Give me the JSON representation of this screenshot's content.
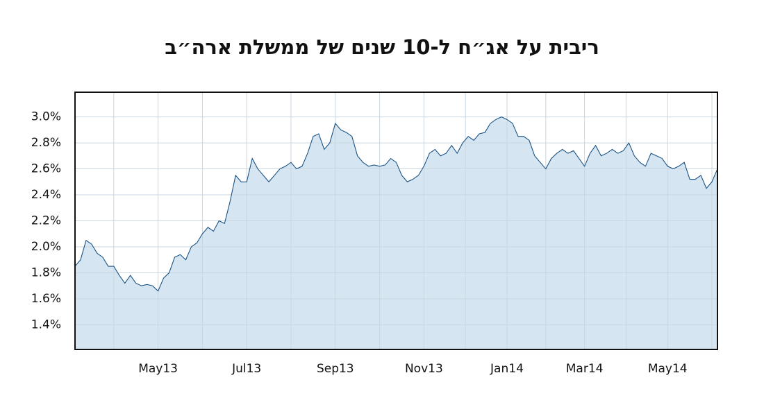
{
  "chart_data": {
    "type": "area",
    "title": "ריבית על אג״ח ל-10 שנים של ממשלת ארה״ב",
    "categories": [
      null,
      null,
      null,
      null,
      null,
      null,
      null,
      null,
      null,
      null,
      null,
      null,
      null,
      null,
      null,
      "May13",
      null,
      null,
      null,
      null,
      null,
      null,
      null,
      null,
      null,
      null,
      null,
      null,
      null,
      null,
      null,
      "Jul13",
      null,
      null,
      null,
      null,
      null,
      null,
      null,
      null,
      null,
      null,
      null,
      null,
      null,
      null,
      null,
      "Sep13",
      null,
      null,
      null,
      null,
      null,
      null,
      null,
      null,
      null,
      null,
      null,
      null,
      null,
      null,
      null,
      "Nov13",
      null,
      null,
      null,
      null,
      null,
      null,
      null,
      null,
      null,
      null,
      null,
      null,
      null,
      null,
      "Jan14",
      null,
      null,
      null,
      null,
      null,
      null,
      null,
      null,
      null,
      null,
      null,
      null,
      null,
      "Mar14",
      null,
      null,
      null,
      null,
      null,
      null,
      null,
      null,
      null,
      null,
      null,
      null,
      null,
      null,
      "May14",
      null,
      null,
      null,
      null,
      null,
      null,
      null,
      null,
      null
    ],
    "values": [
      1.85,
      1.9,
      2.05,
      2.02,
      1.95,
      1.92,
      1.85,
      1.85,
      1.78,
      1.72,
      1.78,
      1.72,
      1.7,
      1.71,
      1.7,
      1.66,
      1.76,
      1.8,
      1.92,
      1.94,
      1.9,
      2.0,
      2.03,
      2.1,
      2.15,
      2.12,
      2.2,
      2.18,
      2.35,
      2.55,
      2.5,
      2.5,
      2.68,
      2.6,
      2.55,
      2.5,
      2.55,
      2.6,
      2.62,
      2.65,
      2.6,
      2.62,
      2.72,
      2.85,
      2.87,
      2.75,
      2.8,
      2.95,
      2.9,
      2.88,
      2.85,
      2.7,
      2.65,
      2.62,
      2.63,
      2.62,
      2.63,
      2.68,
      2.65,
      2.55,
      2.5,
      2.52,
      2.55,
      2.62,
      2.72,
      2.75,
      2.7,
      2.72,
      2.78,
      2.72,
      2.8,
      2.85,
      2.82,
      2.87,
      2.88,
      2.95,
      2.98,
      3.0,
      2.98,
      2.95,
      2.85,
      2.85,
      2.82,
      2.7,
      2.65,
      2.6,
      2.68,
      2.72,
      2.75,
      2.72,
      2.74,
      2.68,
      2.62,
      2.72,
      2.78,
      2.7,
      2.72,
      2.75,
      2.72,
      2.74,
      2.8,
      2.7,
      2.65,
      2.62,
      2.72,
      2.7,
      2.68,
      2.62,
      2.6,
      2.62,
      2.65,
      2.52,
      2.52,
      2.55,
      2.45,
      2.5,
      2.6
    ],
    "color": "#1b5283",
    "fill": "#d5e6f2",
    "ylim": [
      1.21,
      3.19
    ],
    "yticks": [
      {
        "value": 1.4,
        "label": "1.4%"
      },
      {
        "value": 1.6,
        "label": "1.6%"
      },
      {
        "value": 1.8,
        "label": "1.8%"
      },
      {
        "value": 2.0,
        "label": "2.0%"
      },
      {
        "value": 2.2,
        "label": "2.2%"
      },
      {
        "value": 2.4,
        "label": "2.4%"
      },
      {
        "value": 2.6,
        "label": "2.6%"
      },
      {
        "value": 2.8,
        "label": "2.8%"
      },
      {
        "value": 3.0,
        "label": "3.0%"
      }
    ],
    "grid": true
  }
}
